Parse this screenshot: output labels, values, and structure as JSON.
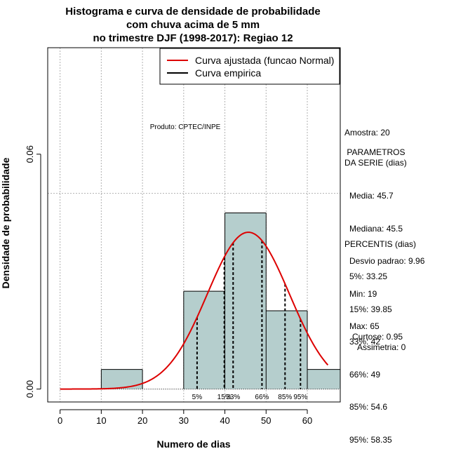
{
  "chart_data": {
    "type": "histogram",
    "title_lines": [
      "Histograma e curva de densidade de probabilidade",
      "com chuva acima de 5 mm",
      "no trimestre DJF (1998-2017): Regiao 12"
    ],
    "xlabel": "Numero de dias",
    "ylabel": "Densidade de probabilidade",
    "xlim": [
      -3,
      68
    ],
    "ylim": [
      -0.0033,
      0.0872
    ],
    "x_ticks": [
      0,
      10,
      20,
      30,
      40,
      50,
      60
    ],
    "y_ticks": [
      0.0,
      0.06
    ],
    "y_tick_labels": [
      "0.00",
      "0.06"
    ],
    "bins": [
      {
        "start": 10,
        "end": 20,
        "density": 0.005
      },
      {
        "start": 20,
        "end": 30,
        "density": 0.0
      },
      {
        "start": 30,
        "end": 40,
        "density": 0.025
      },
      {
        "start": 40,
        "end": 50,
        "density": 0.045
      },
      {
        "start": 50,
        "end": 60,
        "density": 0.02
      },
      {
        "start": 60,
        "end": 70,
        "density": 0.005
      }
    ],
    "bar_color": "#b5cecd",
    "normal_fit": {
      "mean": 45.7,
      "sd": 9.96,
      "x_from": 0,
      "x_to": 65,
      "color": "#dd0000"
    },
    "dashed_hline": 0.05,
    "percentile_lines": [
      {
        "label": "5%",
        "x": 33.25
      },
      {
        "label": "15%",
        "x": 39.85
      },
      {
        "label": "33%",
        "x": 42
      },
      {
        "label": "66%",
        "x": 49
      },
      {
        "label": "85%",
        "x": 54.6
      },
      {
        "label": "95%",
        "x": 58.35
      }
    ],
    "legend": [
      {
        "label": "Curva ajustada (funcao Normal)",
        "color": "#dd0000"
      },
      {
        "label": "Curva empirica",
        "color": "#000000"
      }
    ],
    "legend_position": "top-right",
    "annotation": "Produto: CPTEC/INPE"
  },
  "side_panel": {
    "amostra": "Amostra: 20",
    "parametros_title": " PARAMETROS",
    "parametros_subtitle": "DA SERIE (dias)",
    "parametros": [
      "Media: 45.7",
      "Mediana: 45.5",
      "Desvio padrao: 9.96",
      "Min: 19",
      "Max: 65"
    ],
    "percentis_title": "PERCENTIS (dias)",
    "percentis": [
      "5%: 33.25",
      "15%: 39.85",
      "33%: 42",
      "66%: 49",
      "85%: 54.6",
      "95%: 58.35"
    ],
    "curtose": "Curtose: 0.95",
    "assimetria": "Assimetria: 0"
  }
}
